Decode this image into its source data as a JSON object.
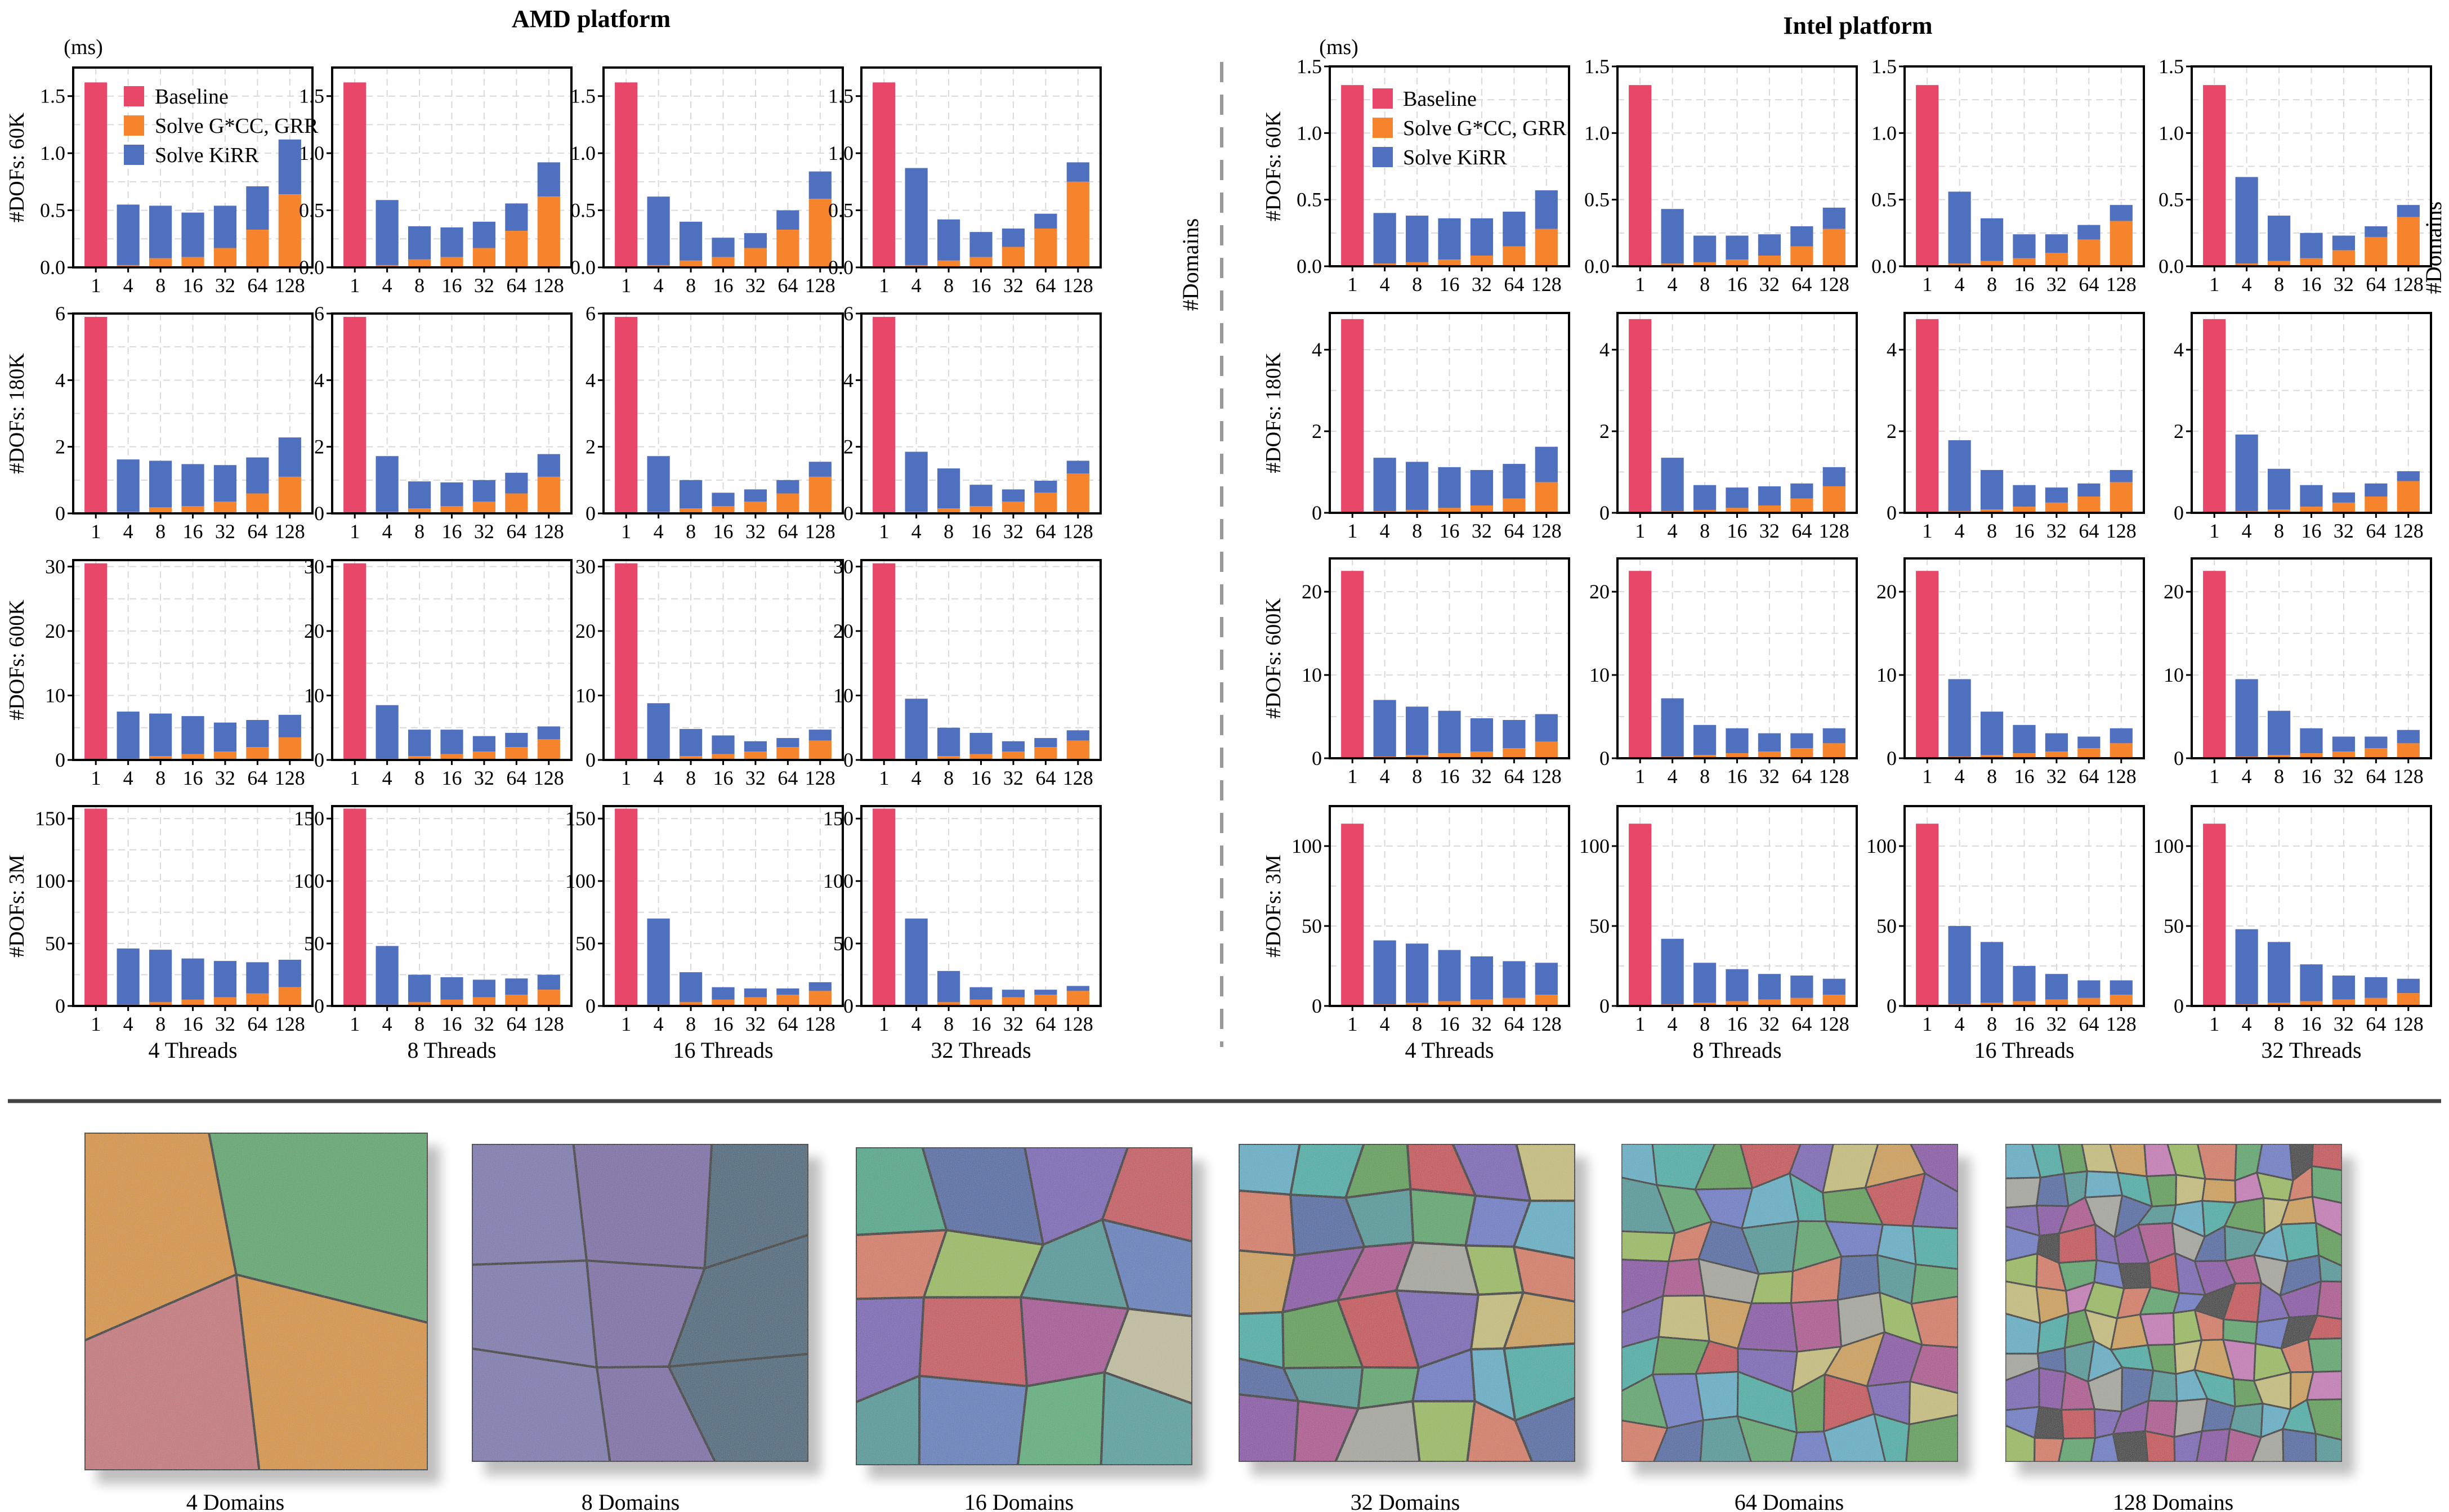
{
  "platforms": [
    {
      "title": "AMD platform"
    },
    {
      "title": "Intel platform"
    }
  ],
  "unit_label": "(ms)",
  "domains_axis_label": "#Domains",
  "legend": {
    "baseline": "Baseline",
    "solve_g": "Solve G*CC, GRR",
    "solve_k": "Solve KiRR"
  },
  "thread_labels": [
    "4 Threads",
    "8 Threads",
    "16 Threads",
    "32 Threads"
  ],
  "row_labels": [
    "#DOFs: 60K",
    "#DOFs: 180K",
    "#DOFs: 600K",
    "#DOFs: 3M"
  ],
  "mesh_labels": [
    "4 Domains",
    "8 Domains",
    "16 Domains",
    "32 Domains",
    "64 Domains",
    "128 Domains"
  ],
  "colors": {
    "baseline": "#e8476a",
    "solve_g": "#f5842c",
    "solve_k": "#4f6fbf",
    "divider": "#999999",
    "grid": "#d9d9d9"
  },
  "chart_data": [
    {
      "type": "bar",
      "platform": "AMD platform",
      "categories": [
        "1",
        "4",
        "8",
        "16",
        "32",
        "64",
        "128"
      ],
      "stacking": "stacked: Solve G on bottom, Solve K on top; Baseline only at 1 domain",
      "rows": [
        {
          "dofs": "60K",
          "ylim": [
            0,
            1.75
          ],
          "yticks": [
            0.0,
            0.5,
            1.0,
            1.5
          ],
          "baseline": 1.62,
          "threads": [
            {
              "label": "4 Threads",
              "g": [
                0.02,
                0.08,
                0.09,
                0.17,
                0.33,
                0.64
              ],
              "total": [
                0.55,
                0.54,
                0.48,
                0.54,
                0.71,
                1.12
              ]
            },
            {
              "label": "8 Threads",
              "g": [
                0.02,
                0.07,
                0.09,
                0.17,
                0.32,
                0.62
              ],
              "total": [
                0.59,
                0.36,
                0.35,
                0.4,
                0.56,
                0.92
              ]
            },
            {
              "label": "16 Threads",
              "g": [
                0.02,
                0.06,
                0.09,
                0.17,
                0.33,
                0.6
              ],
              "total": [
                0.62,
                0.4,
                0.26,
                0.3,
                0.5,
                0.84
              ]
            },
            {
              "label": "32 Threads",
              "g": [
                0.02,
                0.06,
                0.09,
                0.18,
                0.34,
                0.75
              ],
              "total": [
                0.87,
                0.42,
                0.31,
                0.34,
                0.47,
                0.92
              ]
            }
          ]
        },
        {
          "dofs": "180K",
          "ylim": [
            0,
            6
          ],
          "yticks": [
            0,
            2,
            4,
            6
          ],
          "baseline": 5.9,
          "threads": [
            {
              "label": "4 Threads",
              "g": [
                0.05,
                0.18,
                0.22,
                0.35,
                0.6,
                1.1
              ],
              "total": [
                1.62,
                1.58,
                1.48,
                1.45,
                1.68,
                2.28
              ]
            },
            {
              "label": "8 Threads",
              "g": [
                0.05,
                0.15,
                0.22,
                0.35,
                0.6,
                1.1
              ],
              "total": [
                1.72,
                0.96,
                0.93,
                1.0,
                1.22,
                1.78
              ]
            },
            {
              "label": "16 Threads",
              "g": [
                0.05,
                0.15,
                0.22,
                0.35,
                0.6,
                1.1
              ],
              "total": [
                1.72,
                1.0,
                0.62,
                0.72,
                1.0,
                1.55
              ]
            },
            {
              "label": "32 Threads",
              "g": [
                0.05,
                0.15,
                0.22,
                0.35,
                0.62,
                1.2
              ],
              "total": [
                1.85,
                1.35,
                0.86,
                0.72,
                0.98,
                1.58
              ]
            }
          ]
        },
        {
          "dofs": "600K",
          "ylim": [
            0,
            31
          ],
          "yticks": [
            0,
            10,
            20,
            30
          ],
          "baseline": 30.5,
          "threads": [
            {
              "label": "4 Threads",
              "g": [
                0.2,
                0.6,
                0.9,
                1.3,
                2.0,
                3.5
              ],
              "total": [
                7.5,
                7.2,
                6.8,
                5.8,
                6.2,
                7.0
              ]
            },
            {
              "label": "8 Threads",
              "g": [
                0.2,
                0.6,
                0.9,
                1.3,
                2.0,
                3.2
              ],
              "total": [
                8.5,
                4.7,
                4.7,
                3.7,
                4.2,
                5.2
              ]
            },
            {
              "label": "16 Threads",
              "g": [
                0.2,
                0.6,
                0.9,
                1.3,
                2.0,
                3.0
              ],
              "total": [
                8.8,
                4.8,
                3.8,
                2.9,
                3.4,
                4.7
              ]
            },
            {
              "label": "32 Threads",
              "g": [
                0.2,
                0.6,
                0.9,
                1.3,
                2.0,
                3.0
              ],
              "total": [
                9.5,
                5.0,
                4.2,
                2.9,
                3.4,
                4.6
              ]
            }
          ]
        },
        {
          "dofs": "3M",
          "ylim": [
            0,
            160
          ],
          "yticks": [
            0,
            50,
            100,
            150
          ],
          "baseline": 158,
          "threads": [
            {
              "label": "4 Threads",
              "g": [
                1,
                3,
                5,
                7,
                10,
                15
              ],
              "total": [
                46,
                45,
                38,
                36,
                35,
                37
              ]
            },
            {
              "label": "8 Threads",
              "g": [
                1,
                3,
                5,
                7,
                9,
                13
              ],
              "total": [
                48,
                25,
                23,
                21,
                22,
                25
              ]
            },
            {
              "label": "16 Threads",
              "g": [
                1,
                3,
                5,
                7,
                9,
                12
              ],
              "total": [
                70,
                27,
                15,
                14,
                14,
                19
              ]
            },
            {
              "label": "32 Threads",
              "g": [
                1,
                3,
                5,
                7,
                9,
                12
              ],
              "total": [
                70,
                28,
                15,
                13,
                13,
                16
              ]
            }
          ]
        }
      ]
    },
    {
      "type": "bar",
      "platform": "Intel platform",
      "categories": [
        "1",
        "4",
        "8",
        "16",
        "32",
        "64",
        "128"
      ],
      "stacking": "stacked: Solve G on bottom, Solve K on top; Baseline only at 1 domain",
      "rows": [
        {
          "dofs": "60K",
          "ylim": [
            0,
            1.5
          ],
          "yticks": [
            0.0,
            0.5,
            1.0,
            1.5
          ],
          "baseline": 1.36,
          "threads": [
            {
              "label": "4 Threads",
              "g": [
                0.02,
                0.03,
                0.05,
                0.08,
                0.15,
                0.28
              ],
              "total": [
                0.4,
                0.38,
                0.36,
                0.36,
                0.41,
                0.57
              ]
            },
            {
              "label": "8 Threads",
              "g": [
                0.02,
                0.03,
                0.05,
                0.08,
                0.15,
                0.28
              ],
              "total": [
                0.43,
                0.23,
                0.23,
                0.24,
                0.3,
                0.44
              ]
            },
            {
              "label": "16 Threads",
              "g": [
                0.02,
                0.04,
                0.06,
                0.1,
                0.2,
                0.34
              ],
              "total": [
                0.56,
                0.36,
                0.24,
                0.24,
                0.31,
                0.46
              ]
            },
            {
              "label": "32 Threads",
              "g": [
                0.02,
                0.04,
                0.06,
                0.12,
                0.22,
                0.37
              ],
              "total": [
                0.67,
                0.38,
                0.25,
                0.23,
                0.3,
                0.46
              ]
            }
          ]
        },
        {
          "dofs": "180K",
          "ylim": [
            0,
            4.9
          ],
          "yticks": [
            0,
            2,
            4
          ],
          "baseline": 4.75,
          "threads": [
            {
              "label": "4 Threads",
              "g": [
                0.04,
                0.07,
                0.12,
                0.18,
                0.35,
                0.75
              ],
              "total": [
                1.35,
                1.25,
                1.12,
                1.05,
                1.2,
                1.62
              ]
            },
            {
              "label": "8 Threads",
              "g": [
                0.04,
                0.07,
                0.12,
                0.18,
                0.35,
                0.65
              ],
              "total": [
                1.35,
                0.68,
                0.62,
                0.65,
                0.72,
                1.12
              ]
            },
            {
              "label": "16 Threads",
              "g": [
                0.04,
                0.08,
                0.15,
                0.25,
                0.4,
                0.75
              ],
              "total": [
                1.78,
                1.05,
                0.68,
                0.62,
                0.72,
                1.05
              ]
            },
            {
              "label": "32 Threads",
              "g": [
                0.04,
                0.08,
                0.15,
                0.25,
                0.4,
                0.78
              ],
              "total": [
                1.92,
                1.08,
                0.68,
                0.5,
                0.72,
                1.02
              ]
            }
          ]
        },
        {
          "dofs": "600K",
          "ylim": [
            0,
            24
          ],
          "yticks": [
            0,
            10,
            20
          ],
          "baseline": 22.5,
          "threads": [
            {
              "label": "4 Threads",
              "g": [
                0.2,
                0.4,
                0.6,
                0.8,
                1.2,
                2.0
              ],
              "total": [
                7.0,
                6.2,
                5.7,
                4.8,
                4.6,
                5.3
              ]
            },
            {
              "label": "8 Threads",
              "g": [
                0.2,
                0.4,
                0.6,
                0.8,
                1.2,
                1.8
              ],
              "total": [
                7.2,
                4.0,
                3.6,
                3.0,
                3.0,
                3.6
              ]
            },
            {
              "label": "16 Threads",
              "g": [
                0.2,
                0.4,
                0.6,
                0.8,
                1.2,
                1.8
              ],
              "total": [
                9.5,
                5.6,
                4.0,
                3.0,
                2.6,
                3.6
              ]
            },
            {
              "label": "32 Threads",
              "g": [
                0.2,
                0.4,
                0.6,
                0.8,
                1.2,
                1.8
              ],
              "total": [
                9.5,
                5.7,
                3.6,
                2.6,
                2.6,
                3.4
              ]
            }
          ]
        },
        {
          "dofs": "3M",
          "ylim": [
            0,
            125
          ],
          "yticks": [
            0,
            50,
            100
          ],
          "baseline": 114,
          "threads": [
            {
              "label": "4 Threads",
              "g": [
                1,
                2,
                3,
                4,
                5,
                7
              ],
              "total": [
                41,
                39,
                35,
                31,
                28,
                27
              ]
            },
            {
              "label": "8 Threads",
              "g": [
                1,
                2,
                3,
                4,
                5,
                7
              ],
              "total": [
                42,
                27,
                23,
                20,
                19,
                17
              ]
            },
            {
              "label": "16 Threads",
              "g": [
                1,
                2,
                3,
                4,
                5,
                7
              ],
              "total": [
                50,
                40,
                25,
                20,
                16,
                16
              ]
            },
            {
              "label": "32 Threads",
              "g": [
                1,
                2,
                3,
                4,
                5,
                8
              ],
              "total": [
                48,
                40,
                26,
                19,
                18,
                17
              ]
            }
          ]
        }
      ]
    }
  ]
}
